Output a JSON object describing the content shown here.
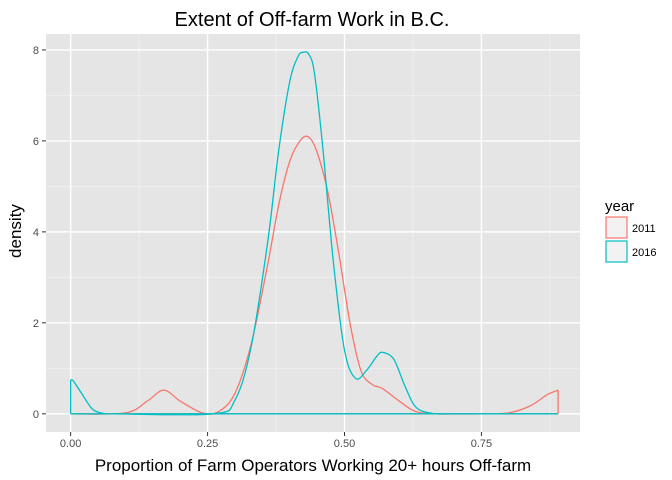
{
  "chart_data": {
    "type": "line",
    "subtype": "density",
    "title": "Extent of Off-farm Work in B.C.",
    "xlabel": "Proportion of Farm Operators Working 20+ hours Off-farm",
    "ylabel": "density",
    "xlim": [
      -0.045,
      0.93
    ],
    "ylim": [
      -0.4,
      8.35
    ],
    "x_ticks": [
      0.0,
      0.25,
      0.5,
      0.75
    ],
    "x_tick_labels": [
      "0.00",
      "0.25",
      "0.50",
      "0.75"
    ],
    "y_ticks": [
      0,
      2,
      4,
      6,
      8
    ],
    "y_tick_labels": [
      "0",
      "2",
      "4",
      "6",
      "8"
    ],
    "grid": true,
    "background": "#e5e5e5",
    "legend": {
      "title": "year",
      "placement": "right"
    },
    "series": [
      {
        "name": "2011",
        "color": "#f8766d",
        "x": [
          0.0,
          0.1,
          0.14,
          0.17,
          0.2,
          0.24,
          0.27,
          0.3,
          0.33,
          0.36,
          0.38,
          0.4,
          0.42,
          0.435,
          0.45,
          0.47,
          0.49,
          0.51,
          0.53,
          0.55,
          0.57,
          0.6,
          0.63,
          0.67,
          0.75,
          0.8,
          0.84,
          0.87,
          0.89,
          0.89,
          0.0
        ],
        "y": [
          0.0,
          0.02,
          0.28,
          0.52,
          0.28,
          0.02,
          0.05,
          0.45,
          1.55,
          3.3,
          4.6,
          5.55,
          6.02,
          6.08,
          5.75,
          4.85,
          3.5,
          2.0,
          0.95,
          0.65,
          0.55,
          0.28,
          0.05,
          0.0,
          0.0,
          0.02,
          0.18,
          0.42,
          0.52,
          0.0,
          0.0
        ]
      },
      {
        "name": "2016",
        "color": "#00bfc4",
        "x": [
          0.0,
          0.0,
          0.005,
          0.02,
          0.04,
          0.06,
          0.08,
          0.26,
          0.3,
          0.33,
          0.36,
          0.38,
          0.4,
          0.415,
          0.425,
          0.435,
          0.445,
          0.46,
          0.48,
          0.5,
          0.52,
          0.54,
          0.56,
          0.57,
          0.59,
          0.61,
          0.63,
          0.66,
          0.7,
          0.89,
          0.0
        ],
        "y": [
          0.0,
          0.75,
          0.72,
          0.45,
          0.1,
          0.01,
          0.0,
          0.0,
          0.3,
          1.5,
          3.8,
          5.8,
          7.3,
          7.85,
          7.95,
          7.9,
          7.5,
          5.9,
          3.3,
          1.4,
          0.78,
          0.95,
          1.28,
          1.35,
          1.2,
          0.62,
          0.15,
          0.01,
          0.0,
          0.0,
          0.0
        ]
      }
    ]
  }
}
